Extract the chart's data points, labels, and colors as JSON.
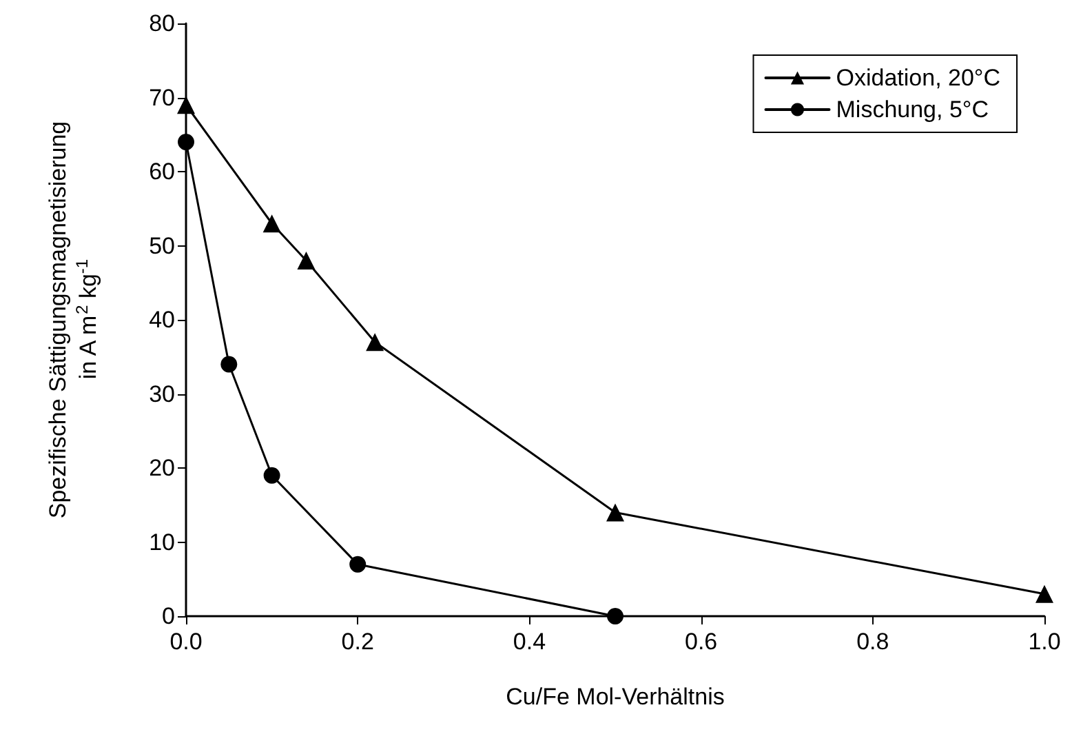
{
  "chart_data": {
    "type": "line",
    "xlabel": "Cu/Fe Mol-Verhältnis",
    "ylabel": "Spezifische Sättigungsmagnetisierung\nin A m$^{2}$ kg$^{-1}$",
    "series": [
      {
        "name": "Oxidation, 20°C",
        "color": "#000000",
        "marker": "triangle",
        "x": [
          0,
          0.1,
          0.14,
          0.22,
          0.5,
          1.0
        ],
        "values": [
          69,
          53,
          48,
          37,
          14,
          3
        ]
      },
      {
        "name": "Mischung, 5°C",
        "color": "#000000",
        "marker": "circle",
        "x": [
          0,
          0.05,
          0.1,
          0.2,
          0.5
        ],
        "values": [
          64,
          34,
          19,
          7,
          0
        ]
      }
    ],
    "xlim": [
      0,
      1.0
    ],
    "xticks": [
      {
        "value": 0,
        "label": "0.0"
      },
      {
        "value": 0.2,
        "label": "0.2"
      },
      {
        "value": 0.4,
        "label": "0.4"
      },
      {
        "value": 0.6,
        "label": "0.6"
      },
      {
        "value": 0.8,
        "label": "0.8"
      },
      {
        "value": 1.0,
        "label": "1.0"
      }
    ],
    "ylim": [
      0,
      80
    ],
    "yticks": [
      0,
      10,
      20,
      30,
      40,
      50,
      60,
      70,
      80
    ],
    "grid": false,
    "legend": "top right",
    "line_style": "solid"
  }
}
